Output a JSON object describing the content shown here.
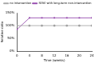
{
  "chart_data": {
    "type": "line",
    "x_label": "Time (weeks)",
    "y_label": "Relative ratio",
    "xlim": [
      0,
      24
    ],
    "xticks": [
      0,
      4,
      8,
      12,
      16,
      20,
      24
    ],
    "ylim": [
      0,
      150
    ],
    "yticks": [
      {
        "value": 0,
        "label": "0%"
      },
      {
        "value": 50,
        "label": "50%"
      },
      {
        "value": 100,
        "label": "100%"
      },
      {
        "value": 150,
        "label": "150%"
      }
    ],
    "legend": "upper right",
    "grid": false,
    "series": [
      {
        "name": "no intervention",
        "color": "#a0a0a0",
        "marker": "circle",
        "line_style": "solid",
        "x": [
          0,
          4,
          8,
          12,
          16,
          20,
          24
        ],
        "values": [
          100,
          100,
          100,
          100,
          100,
          100,
          100
        ]
      },
      {
        "name": "SERE with long-term non-intervention",
        "color": "#8e3fa8",
        "marker": "square",
        "line_style": "solid",
        "x": [
          0,
          4,
          8,
          12,
          16,
          20,
          24
        ],
        "values": [
          85,
          130,
          130,
          130,
          130,
          130,
          130
        ]
      }
    ]
  }
}
